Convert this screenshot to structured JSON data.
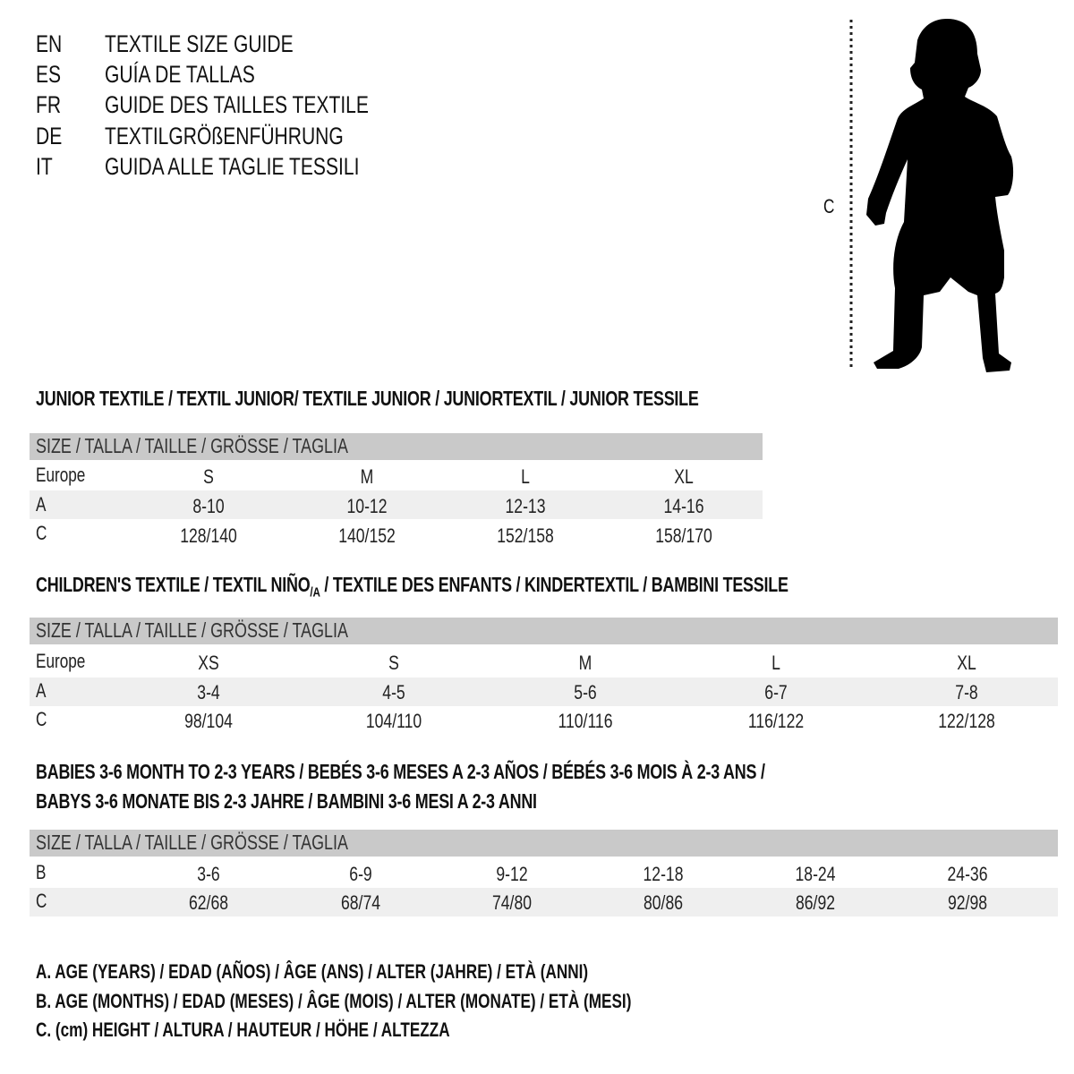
{
  "languages": [
    {
      "code": "EN",
      "text": "TEXTILE SIZE GUIDE"
    },
    {
      "code": "ES",
      "text": "GUÍA DE TALLAS"
    },
    {
      "code": "FR",
      "text": "GUIDE DES TAILLES TEXTILE"
    },
    {
      "code": "DE",
      "text": "TEXTILGRÖßENFÜHRUNG"
    },
    {
      "code": "IT",
      "text": "GUIDA ALLE TAGLIE TESSILI"
    }
  ],
  "figure": {
    "label": "C",
    "icon": "child-silhouette"
  },
  "size_header": "SIZE / TALLA / TAILLE / GRÖSSE / TAGLIA",
  "junior": {
    "title": "JUNIOR TEXTILE / TEXTIL JUNIOR/ TEXTILE JUNIOR / JUNIORTEXTIL / JUNIOR TESSILE",
    "rows": [
      {
        "label": "Europe",
        "values": [
          "S",
          "M",
          "L",
          "XL"
        ]
      },
      {
        "label": "A",
        "values": [
          "8-10",
          "10-12",
          "12-13",
          "14-16"
        ]
      },
      {
        "label": "C",
        "values": [
          "128/140",
          "140/152",
          "152/158",
          "158/170"
        ]
      }
    ]
  },
  "children": {
    "title_a": "CHILDREN'S TEXTILE / TEXTIL NIÑO",
    "title_sub": "/A",
    "title_b": " / TEXTILE DES ENFANTS / KINDERTEXTIL / BAMBINI TESSILE",
    "rows": [
      {
        "label": "Europe",
        "values": [
          "XS",
          "S",
          "M",
          "L",
          "XL"
        ]
      },
      {
        "label": "A",
        "values": [
          "3-4",
          "4-5",
          "5-6",
          "6-7",
          "7-8"
        ]
      },
      {
        "label": "C",
        "values": [
          "98/104",
          "104/110",
          "110/116",
          "116/122",
          "122/128"
        ]
      }
    ]
  },
  "babies": {
    "title_line1": "BABIES 3-6 MONTH TO 2-3 YEARS / BEBÉS 3-6 MESES A 2-3 AÑOS / BÉBÉS 3-6 MOIS À 2-3 ANS /",
    "title_line2": "BABYS 3-6 MONATE BIS 2-3 JAHRE / BAMBINI 3-6 MESI A 2-3 ANNI",
    "rows": [
      {
        "label": "B",
        "values": [
          "3-6",
          "6-9",
          "9-12",
          "12-18",
          "18-24",
          "24-36"
        ]
      },
      {
        "label": "C",
        "values": [
          "62/68",
          "68/74",
          "74/80",
          "80/86",
          "86/92",
          "92/98"
        ]
      }
    ]
  },
  "legend": [
    "A. AGE (YEARS) / EDAD (AÑOS) / ÂGE (ANS) / ALTER (JAHRE) / ETÀ (ANNI)",
    "B. AGE (MONTHS) / EDAD (MESES) / ÂGE (MOIS) / ALTER (MONATE) / ETÀ (MESI)",
    "C. (cm) HEIGHT / ALTURA / HAUTEUR / HÖHE / ALTEZZA"
  ]
}
